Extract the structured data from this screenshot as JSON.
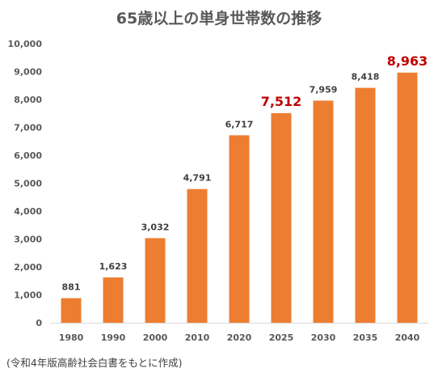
{
  "title": "65歳以上の単身世帯数の推移",
  "source": "(令和4年版高齢社会白書をもとに作成)",
  "colors": {
    "bar": "#ED7D31",
    "highlight_label": "#C00000",
    "axis_text": "#595959"
  },
  "chart_data": {
    "type": "bar",
    "title": "65歳以上の単身世帯数の推移",
    "xlabel": "",
    "ylabel": "",
    "categories": [
      "1980",
      "1990",
      "2000",
      "2010",
      "2020",
      "2025",
      "2030",
      "2035",
      "2040"
    ],
    "values": [
      881,
      1623,
      3032,
      4791,
      6717,
      7512,
      7959,
      8418,
      8963
    ],
    "data_labels": [
      "881",
      "1,623",
      "3,032",
      "4,791",
      "6,717",
      "7,512",
      "7,959",
      "8,418",
      "8,963"
    ],
    "highlighted_categories": [
      "2025",
      "2040"
    ],
    "ylim": [
      0,
      10000
    ],
    "yticks": [
      0,
      1000,
      2000,
      3000,
      4000,
      5000,
      6000,
      7000,
      8000,
      9000,
      10000
    ],
    "ytick_labels": [
      "0",
      "1,000",
      "2,000",
      "3,000",
      "4,000",
      "5,000",
      "6,000",
      "7,000",
      "8,000",
      "9,000",
      "10,000"
    ],
    "grid": false,
    "legend": "none"
  }
}
